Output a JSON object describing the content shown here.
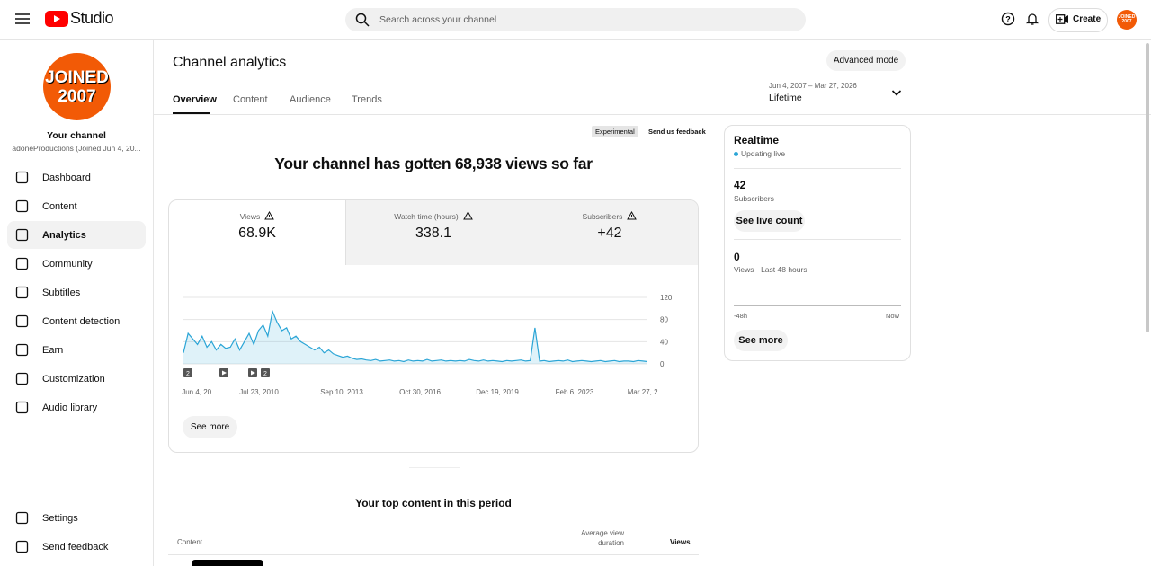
{
  "header": {
    "logo": "Studio",
    "search_placeholder": "Search across your channel",
    "create": "Create",
    "avatar": "JOINED 2007"
  },
  "sidebar": {
    "avatar": [
      "JOINED",
      "2007"
    ],
    "channel_title": "Your channel",
    "channel_name": "adoneProductions (Joined Jun 4, 20...",
    "nav": [
      "Dashboard",
      "Content",
      "Analytics",
      "Community",
      "Subtitles",
      "Content detection",
      "Earn",
      "Customization",
      "Audio library"
    ],
    "bottom": [
      "Settings",
      "Send feedback"
    ]
  },
  "main": {
    "title": "Channel analytics",
    "tabs": [
      "Overview",
      "Content",
      "Audience",
      "Trends"
    ],
    "advanced": "Advanced mode",
    "date_range": "Jun 4, 2007 – Mar 27, 2026",
    "period": "Lifetime",
    "experimental": "Experimental",
    "feedback": "Send us feedback",
    "headline": "Your channel has gotten 68,938 views so far",
    "metrics": [
      {
        "label": "Views",
        "value": "68.9K"
      },
      {
        "label": "Watch time (hours)",
        "value": "338.1"
      },
      {
        "label": "Subscribers",
        "value": "+42"
      }
    ],
    "chart": {
      "type": "area",
      "color": "#2ba5d6",
      "values": [
        20,
        55,
        45,
        35,
        50,
        30,
        40,
        25,
        35,
        28,
        30,
        45,
        25,
        40,
        55,
        35,
        60,
        70,
        50,
        95,
        75,
        60,
        65,
        45,
        50,
        40,
        35,
        30,
        25,
        30,
        20,
        25,
        18,
        15,
        12,
        14,
        10,
        8,
        9,
        7,
        6,
        8,
        5,
        6,
        7,
        5,
        6,
        4,
        7,
        5,
        6,
        5,
        8,
        5,
        6,
        7,
        5,
        6,
        5,
        6,
        5,
        8,
        6,
        5,
        7,
        5,
        6,
        5,
        4,
        6,
        5,
        6,
        7,
        5,
        6,
        65,
        5,
        6,
        4,
        5,
        6,
        5,
        7,
        4,
        5,
        6,
        5,
        4,
        5,
        6,
        4,
        5,
        6,
        4,
        5,
        5,
        4,
        6,
        5,
        4
      ],
      "x_tick_labels": [
        "Jun 4, 20...",
        "Jul 23, 2010",
        "Sep 10, 2013",
        "Oct 30, 2016",
        "Dec 19, 2019",
        "Feb 6, 2023",
        "Mar 27, 2..."
      ],
      "ylim": [
        0,
        120
      ],
      "yticks": [
        0,
        40,
        80,
        120
      ],
      "grid": true,
      "annotations": [
        "2",
        "2"
      ]
    },
    "see_more": "See more",
    "top_content_title": "Your top content in this period",
    "table_headers": [
      "Content",
      "Average view duration",
      "Views"
    ]
  },
  "realtime": {
    "title": "Realtime",
    "status": "Updating live",
    "subscribers": "42",
    "subscribers_label": "Subscribers",
    "live_count": "See live count",
    "views": "0",
    "views_label": "Views · Last 48 hours",
    "axis": [
      "-48h",
      "Now"
    ],
    "see_more": "See more"
  }
}
